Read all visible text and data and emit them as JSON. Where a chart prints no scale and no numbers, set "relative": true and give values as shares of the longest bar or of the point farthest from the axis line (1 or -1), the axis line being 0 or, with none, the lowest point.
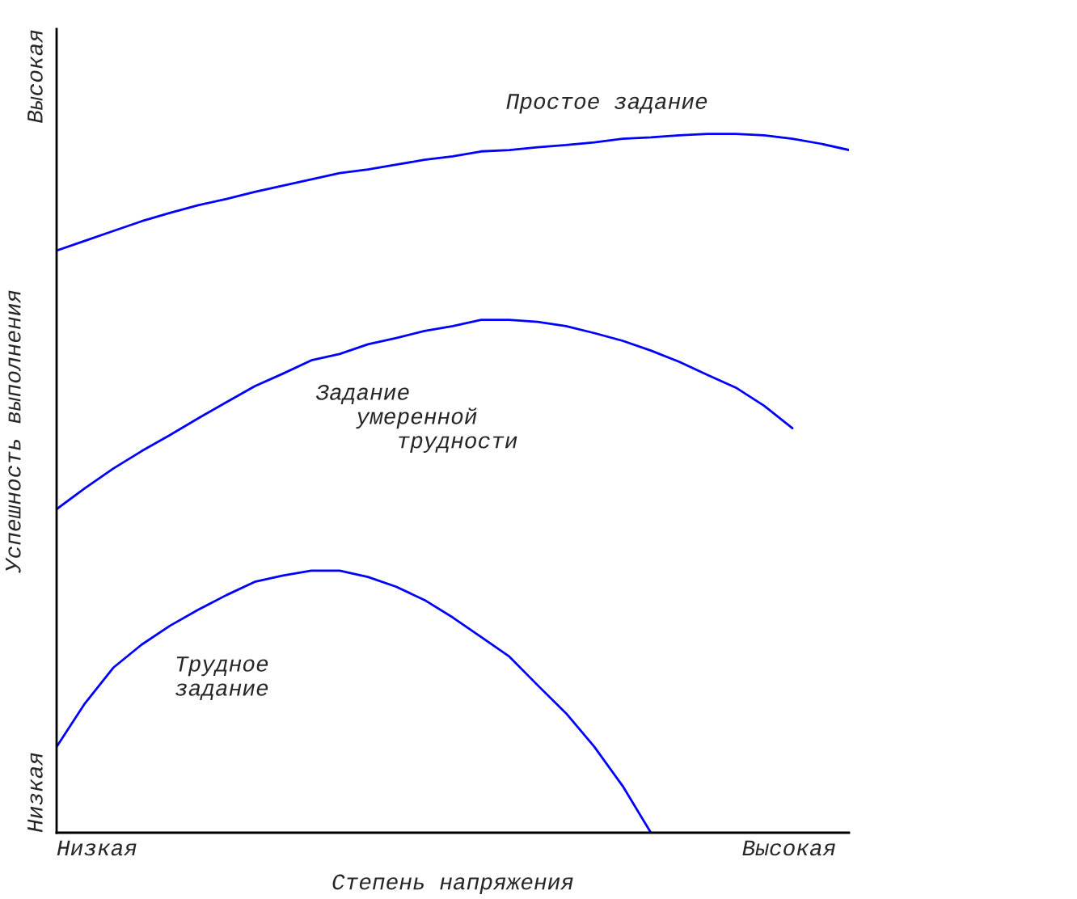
{
  "chart_data": {
    "type": "line",
    "relative": true,
    "xlabel": "Степень напряжения",
    "ylabel": "Успешность выполнения",
    "categories": [
      null,
      null,
      null,
      null,
      null,
      null,
      null,
      null,
      null,
      null,
      null,
      null,
      null,
      null,
      null,
      null,
      null,
      null,
      null,
      null,
      null,
      null,
      null,
      null,
      null,
      null,
      null,
      null,
      null
    ],
    "legend": false,
    "marker": "none",
    "line_style": "solid",
    "series": [
      {
        "color": "#0000ff",
        "values": [
          0.833,
          0.847,
          0.861,
          0.875,
          0.887,
          0.898,
          0.907,
          0.917,
          0.926,
          0.935,
          0.944,
          0.949,
          0.956,
          0.963,
          0.968,
          0.975,
          0.977,
          0.981,
          0.984,
          0.988,
          0.993,
          0.995,
          0.998,
          1.0,
          1.0,
          0.998,
          0.993,
          0.986,
          0.977
        ]
      },
      {
        "color": "#0000ff",
        "values": [
          0.463,
          0.493,
          0.521,
          0.546,
          0.569,
          0.593,
          0.616,
          0.639,
          0.657,
          0.676,
          0.685,
          0.699,
          0.708,
          0.718,
          0.725,
          0.734,
          0.734,
          0.731,
          0.725,
          0.715,
          0.704,
          0.69,
          0.674,
          0.655,
          0.637,
          0.611,
          0.579,
          null,
          null
        ]
      },
      {
        "color": "#0000ff",
        "values": [
          0.123,
          0.185,
          0.236,
          0.269,
          0.296,
          0.319,
          0.34,
          0.359,
          0.368,
          0.375,
          0.375,
          0.366,
          0.352,
          0.333,
          0.308,
          0.28,
          0.252,
          0.211,
          0.171,
          0.123,
          0.067,
          0,
          null,
          null,
          null,
          null,
          null,
          null,
          null
        ]
      }
    ],
    "annotations": [
      "Простое задание",
      "Задание\n   умеренной\n      трудности",
      "Трудное\nзадание",
      "Низкая",
      "Высокая",
      "Низкая",
      "Высокая"
    ]
  }
}
